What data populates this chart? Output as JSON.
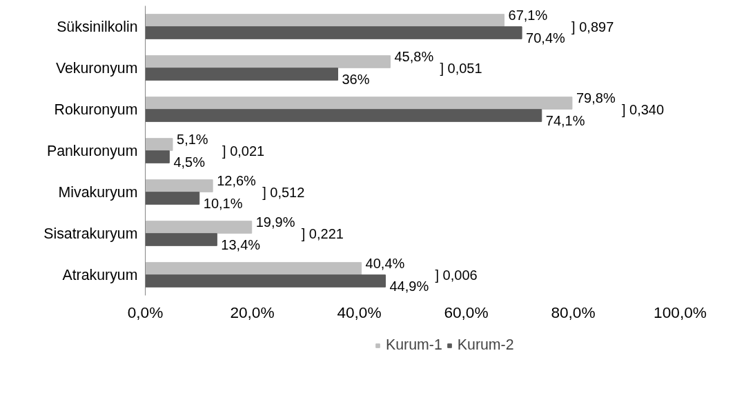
{
  "chart_data": {
    "type": "bar",
    "orientation": "horizontal",
    "categories": [
      "Süksinilkolin",
      "Vekuronyum",
      "Rokuronyum",
      "Pankuronyum",
      "Mivakuryum",
      "Sisatrakuryum",
      "Atrakuryum"
    ],
    "series": [
      {
        "name": "Kurum-1",
        "color": "#bfbfbf",
        "values": [
          67.1,
          45.8,
          79.8,
          5.1,
          12.6,
          19.9,
          40.4
        ],
        "value_labels": [
          "67,1%",
          "45,8%",
          "79,8%",
          "5,1%",
          "12,6%",
          "19,9%",
          "40,4%"
        ]
      },
      {
        "name": "Kurum-2",
        "color": "#595959",
        "values": [
          70.4,
          36,
          74.1,
          4.5,
          10.1,
          13.4,
          44.9
        ],
        "value_labels": [
          "70,4%",
          "36%",
          "74,1%",
          "4,5%",
          "10,1%",
          "13,4%",
          "44,9%"
        ]
      }
    ],
    "xlim": [
      0,
      100
    ],
    "xticks": [
      {
        "value": 0,
        "label": "0,0%"
      },
      {
        "value": 20,
        "label": "20,0%"
      },
      {
        "value": 40,
        "label": "40,0%"
      },
      {
        "value": 60,
        "label": "60,0%"
      },
      {
        "value": 80,
        "label": "80,0%"
      },
      {
        "value": 100,
        "label": "100,0%"
      }
    ],
    "annotations": [
      "] 0,897",
      "] 0,051",
      "] 0,340",
      "] 0,021",
      "] 0,512",
      "] 0,221",
      "] 0,006"
    ],
    "grid": false,
    "legend": "bottom"
  }
}
